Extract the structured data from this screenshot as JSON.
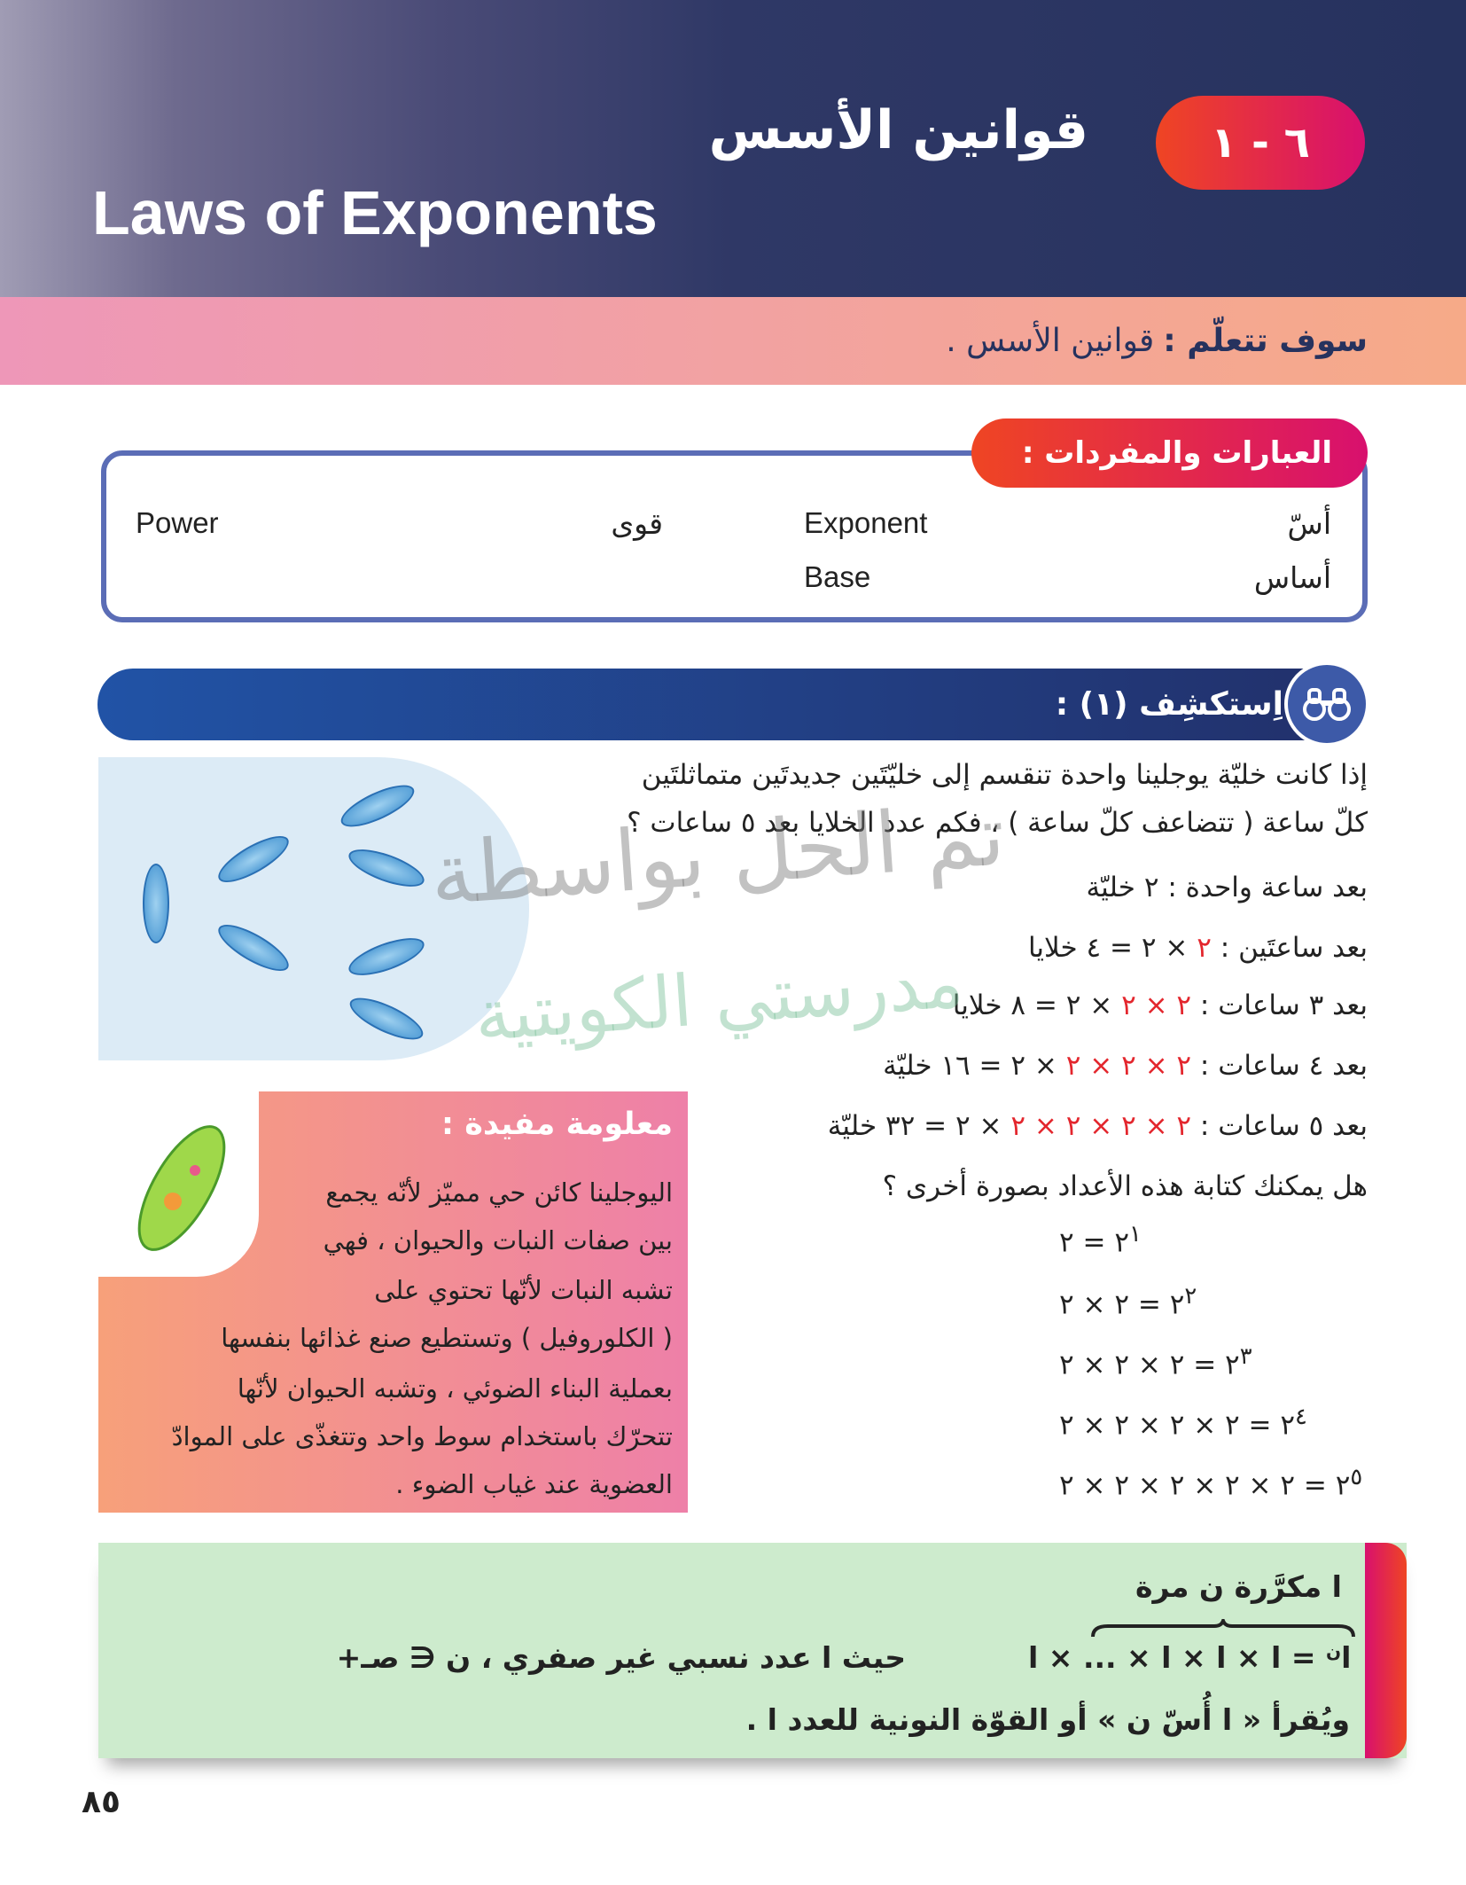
{
  "header": {
    "badge": "٦ - ١",
    "title_ar": "قوانين الأسس",
    "title_en": "Laws of Exponents"
  },
  "learn": {
    "label": "سوف تتعلّم :",
    "text": "قوانين الأسس ."
  },
  "vocab": {
    "label": "العبارات والمفردات :",
    "items": [
      {
        "ar": "أسّ",
        "en": "Exponent"
      },
      {
        "ar": "أساس",
        "en": "Base"
      },
      {
        "ar": "قوى",
        "en": "Power"
      }
    ]
  },
  "explore": {
    "title": "اِستكشِف (١) :",
    "icon": "binoculars-icon",
    "question": [
      "إذا كانت خليّة يوجلينا واحدة تنقسم إلى خليّتَين جديدتَين متماثلتَين",
      "كلّ ساعة ( تتضاعف كلّ ساعة ) ، فكم عدد الخلايا بعد ٥ ساعات ؟"
    ],
    "rows": [
      {
        "label": "بعد ساعة واحدة :",
        "red": "",
        "rest": "٢ خليّة"
      },
      {
        "label": "بعد ساعتَين :",
        "red": "٢",
        "rest": "× ٢ = ٤ خلايا"
      },
      {
        "label": "بعد ٣ ساعات :",
        "red": "٢ × ٢",
        "rest": "× ٢ = ٨ خلايا"
      },
      {
        "label": "بعد ٤ ساعات :",
        "red": "٢ × ٢ × ٢",
        "rest": "× ٢ = ١٦ خليّة"
      },
      {
        "label": "بعد ٥ ساعات :",
        "red": "٢ × ٢ × ٢ × ٢",
        "rest": "× ٢ = ٣٢ خليّة"
      }
    ],
    "prompt": "هل يمكنك كتابة هذه الأعداد بصورة أخرى ؟",
    "equations": [
      {
        "base": "٢",
        "exp": "١",
        "rhs": "= ٢"
      },
      {
        "base": "٢",
        "exp": "٢",
        "rhs": "= ٢ × ٢"
      },
      {
        "base": "٢",
        "exp": "٣",
        "rhs": "= ٢ × ٢ × ٢"
      },
      {
        "base": "٢",
        "exp": "٤",
        "rhs": "= ٢ × ٢ × ٢ × ٢"
      },
      {
        "base": "٢",
        "exp": "٥",
        "rhs": "= ٢ × ٢ × ٢ × ٢ × ٢"
      }
    ]
  },
  "info": {
    "title": "معلومة مفيدة :",
    "lines": [
      "اليوجلينا كائن حي مميّز لأنّه يجمع",
      "بين صفات النبات والحيوان ، فهي",
      "تشبه النبات لأنّها تحتوي على",
      "( الكلوروفيل ) وتستطيع صنع غذائها بنفسها",
      "بعملية البناء الضوئي ، وتشبه الحيوان لأنّها",
      "تتحرّك باستخدام سوط واحد وتتغذّى على الموادّ",
      "العضوية عند غياب الضوء ."
    ]
  },
  "rule": {
    "brace_label": "ﺍ مكرَّرة ن مرة",
    "lhs": "ﺍ",
    "lhs_exp": "ن",
    "rhs": "ﺍ × ﺍ × ﺍ × ... × ﺍ",
    "condition": "حيث ﺍ عدد نسبي غير صفري ، ن ∈ صـ+",
    "reading": "ويُقرأ « ﺍ أُسّ ن » أو القوّة النونية للعدد ﺍ ."
  },
  "watermark": [
    "تم الحل بواسطة",
    "مدرستي الكويتية"
  ],
  "page_number": "٨٥",
  "colors": {
    "header": "#26325e",
    "accent_red": "#e3262d",
    "badge_start": "#ef4523",
    "badge_end": "#d8106e",
    "rule_bg": "#cdebcd",
    "explore_bar": "#2153a6"
  }
}
